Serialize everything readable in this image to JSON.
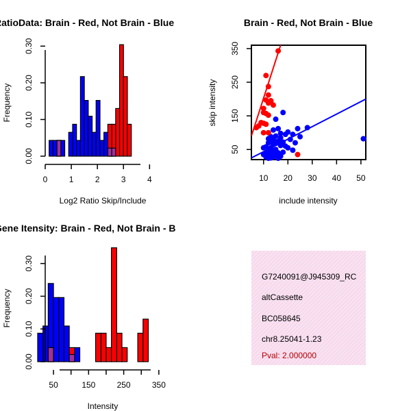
{
  "chart_data": [
    {
      "id": "ratio",
      "type": "histogram",
      "title": "RatioData: Brain - Red, Not Brain - Blue",
      "xlabel": "Log2 Ratio Skip/Include",
      "ylabel": "Frequency",
      "xlim": [
        0,
        4.7
      ],
      "ylim": [
        0,
        0.31
      ],
      "xticks": [
        "0",
        "1",
        "2",
        "3",
        "4"
      ],
      "yticks": [
        "0.00",
        "0.10",
        "0.20",
        "0.30"
      ],
      "bin_width": 0.15,
      "series": [
        {
          "name": "Not Brain",
          "color": "#0000ff",
          "bins": [
            [
              0.15,
              0.043
            ],
            [
              0.3,
              0.043
            ],
            [
              0.45,
              0.043
            ],
            [
              0.6,
              0.043
            ],
            [
              0.9,
              0.065
            ],
            [
              1.05,
              0.087
            ],
            [
              1.2,
              0.043
            ],
            [
              1.35,
              0.217
            ],
            [
              1.5,
              0.152
            ],
            [
              1.65,
              0.109
            ],
            [
              1.8,
              0.065
            ],
            [
              1.95,
              0.152
            ],
            [
              2.1,
              0.043
            ],
            [
              2.25,
              0.065
            ],
            [
              2.4,
              0.022
            ],
            [
              2.55,
              0.022
            ]
          ]
        },
        {
          "name": "Brain",
          "color": "#ff0000",
          "bins": [
            [
              0.45,
              0.043
            ],
            [
              2.4,
              0.087
            ],
            [
              2.55,
              0.087
            ],
            [
              2.7,
              0.13
            ],
            [
              2.85,
              0.304
            ],
            [
              3.0,
              0.217
            ],
            [
              3.15,
              0.087
            ]
          ]
        }
      ]
    },
    {
      "id": "scatter",
      "type": "scatter",
      "title": "Brain - Red, Not Brain - Blue",
      "xlabel": "include intensity",
      "ylabel": "skip intensity",
      "xlim": [
        5,
        52
      ],
      "ylim": [
        20,
        360
      ],
      "xticks": [
        10,
        20,
        30,
        40,
        50
      ],
      "yticks": [
        50,
        150,
        250,
        350
      ],
      "series": [
        {
          "name": "Brain",
          "color": "#ff0000",
          "points": [
            [
              16,
              343
            ],
            [
              11,
              270
            ],
            [
              12,
              237
            ],
            [
              11,
              197
            ],
            [
              12,
              212
            ],
            [
              13,
              192
            ],
            [
              12,
              188
            ],
            [
              14,
              182
            ],
            [
              10,
              172
            ],
            [
              10,
              160
            ],
            [
              11,
              157
            ],
            [
              12,
              152
            ],
            [
              9,
              130
            ],
            [
              10,
              128
            ],
            [
              11,
              125
            ],
            [
              8,
              120
            ],
            [
              7,
              115
            ],
            [
              10,
              100
            ],
            [
              12,
              100
            ],
            [
              24,
              35
            ],
            [
              13,
              195
            ]
          ],
          "fit": [
            [
              5,
              90
            ],
            [
              17,
              360
            ]
          ]
        },
        {
          "name": "Not Brain",
          "color": "#0000ff",
          "points": [
            [
              51,
              82
            ],
            [
              18,
              160
            ],
            [
              15,
              140
            ],
            [
              24,
              112
            ],
            [
              28,
              115
            ],
            [
              16,
              112
            ],
            [
              14,
              108
            ],
            [
              20,
              102
            ],
            [
              17,
              98
            ],
            [
              22,
              95
            ],
            [
              19,
              95
            ],
            [
              15,
              90
            ],
            [
              13,
              88
            ],
            [
              25,
              88
            ],
            [
              17,
              85
            ],
            [
              12,
              82
            ],
            [
              14,
              80
            ],
            [
              21,
              80
            ],
            [
              13,
              78
            ],
            [
              16,
              75
            ],
            [
              18,
              72
            ],
            [
              23,
              70
            ],
            [
              12,
              70
            ],
            [
              15,
              68
            ],
            [
              14,
              65
            ],
            [
              17,
              62
            ],
            [
              19,
              60
            ],
            [
              11,
              58
            ],
            [
              13,
              55
            ],
            [
              20,
              55
            ],
            [
              10,
              55
            ],
            [
              15,
              50
            ],
            [
              22,
              48
            ],
            [
              12,
              48
            ],
            [
              14,
              45
            ],
            [
              18,
              42
            ],
            [
              11,
              40
            ],
            [
              16,
              40
            ],
            [
              13,
              38
            ],
            [
              10,
              35
            ],
            [
              15,
              35
            ],
            [
              12,
              32
            ],
            [
              17,
              30
            ],
            [
              14,
              28
            ],
            [
              11,
              28
            ],
            [
              13,
              25
            ],
            [
              16,
              24
            ],
            [
              12,
              24
            ]
          ],
          "fit": [
            [
              5,
              25
            ],
            [
              52,
              200
            ]
          ]
        }
      ]
    },
    {
      "id": "intensity",
      "type": "histogram",
      "title": "Gene Itensity: Brain - Red, Not Brain - B",
      "xlabel": "Intensity",
      "ylabel": "Frequency",
      "xlim": [
        5,
        360
      ],
      "ylim": [
        0,
        0.36
      ],
      "xticks": [
        50,
        100,
        150,
        200,
        250,
        300,
        350
      ],
      "xtick_labels": [
        "50",
        "150",
        "250",
        "350"
      ],
      "yticks": [
        "0.00",
        "0.10",
        "0.20",
        "0.30"
      ],
      "bin_width": 15,
      "series": [
        {
          "name": "Not Brain",
          "color": "#0000ff",
          "bins": [
            [
              5,
              0.087
            ],
            [
              20,
              0.109
            ],
            [
              35,
              0.239
            ],
            [
              50,
              0.196
            ],
            [
              65,
              0.196
            ],
            [
              80,
              0.109
            ],
            [
              95,
              0.022
            ],
            [
              110,
              0.043
            ]
          ]
        },
        {
          "name": "Brain",
          "color": "#ff0000",
          "bins": [
            [
              35,
              0.043
            ],
            [
              95,
              0.043
            ],
            [
              170,
              0.087
            ],
            [
              185,
              0.087
            ],
            [
              200,
              0.043
            ],
            [
              215,
              0.348
            ],
            [
              230,
              0.087
            ],
            [
              245,
              0.043
            ],
            [
              290,
              0.087
            ],
            [
              305,
              0.13
            ]
          ]
        }
      ]
    }
  ],
  "info": {
    "line1": "G7240091@J945309_RC",
    "line2": "altCassette",
    "line3": "BC058645",
    "line4": "chr8.25041-1.23",
    "pval": "Pval: 2.000000"
  },
  "colors": {
    "panel_bg": "#f8dcef",
    "pval": "#b40000"
  }
}
